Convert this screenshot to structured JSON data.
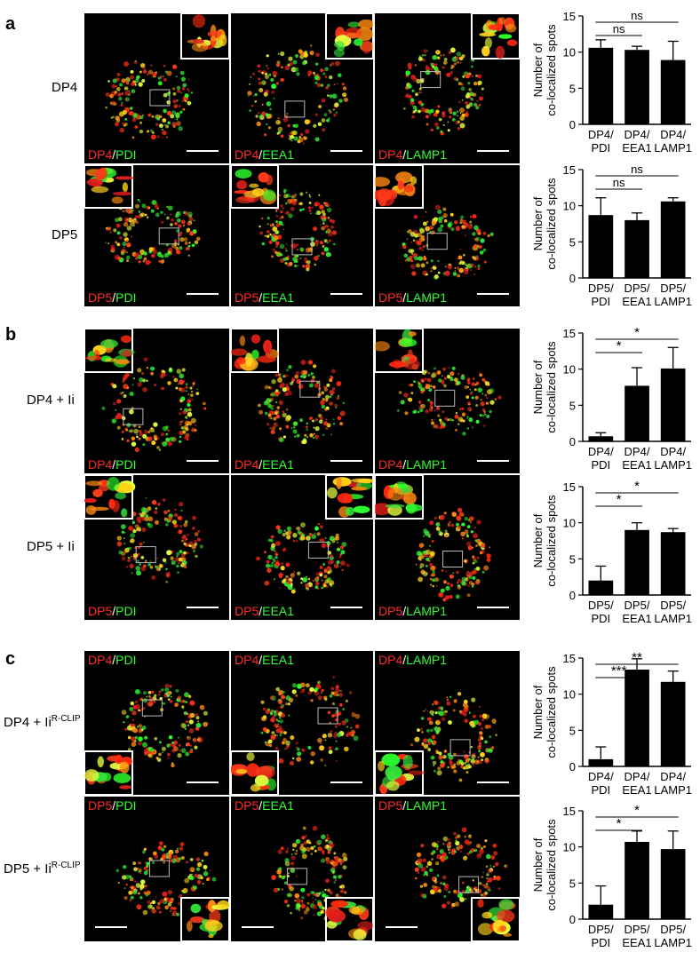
{
  "panels": [
    {
      "letter": "a",
      "rows": [
        {
          "label": "DP4",
          "sup": "",
          "pep": "DP4",
          "images": [
            {
              "marker": "PDI",
              "label_pos": "bottom",
              "inset": "top-right"
            },
            {
              "marker": "EEA1",
              "label_pos": "bottom",
              "inset": "top-right"
            },
            {
              "marker": "LAMP1",
              "label_pos": "bottom",
              "inset": "top-right"
            }
          ]
        },
        {
          "label": "DP5",
          "sup": "",
          "pep": "DP5",
          "images": [
            {
              "marker": "PDI",
              "label_pos": "bottom",
              "inset": "top-left"
            },
            {
              "marker": "EEA1",
              "label_pos": "bottom",
              "inset": "top-left"
            },
            {
              "marker": "LAMP1",
              "label_pos": "bottom",
              "inset": "top-left"
            }
          ]
        }
      ]
    },
    {
      "letter": "b",
      "rows": [
        {
          "label": "DP4 + Ii",
          "sup": "",
          "pep": "DP4",
          "images": [
            {
              "marker": "PDI",
              "label_pos": "bottom",
              "inset": "top-left"
            },
            {
              "marker": "EEA1",
              "label_pos": "bottom",
              "inset": "top-left"
            },
            {
              "marker": "LAMP1",
              "label_pos": "bottom",
              "inset": "top-left"
            }
          ]
        },
        {
          "label": "DP5 + Ii",
          "sup": "",
          "pep": "DP5",
          "images": [
            {
              "marker": "PDI",
              "label_pos": "bottom",
              "inset": "top-left"
            },
            {
              "marker": "EEA1",
              "label_pos": "bottom",
              "inset": "top-right"
            },
            {
              "marker": "LAMP1",
              "label_pos": "bottom",
              "inset": "top-left"
            }
          ]
        }
      ]
    },
    {
      "letter": "c",
      "rows": [
        {
          "label": "DP4 + Ii",
          "sup": "R-CLIP",
          "pep": "DP4",
          "images": [
            {
              "marker": "PDI",
              "label_pos": "top",
              "inset": "bottom-left"
            },
            {
              "marker": "EEA1",
              "label_pos": "top",
              "inset": "bottom-left"
            },
            {
              "marker": "LAMP1",
              "label_pos": "top",
              "inset": "bottom-left"
            }
          ]
        },
        {
          "label": "DP5 + Ii",
          "sup": "R-CLIP",
          "pep": "DP5",
          "images": [
            {
              "marker": "PDI",
              "label_pos": "top",
              "inset": "bottom-right"
            },
            {
              "marker": "EEA1",
              "label_pos": "top",
              "inset": "bottom-right"
            },
            {
              "marker": "LAMP1",
              "label_pos": "top",
              "inset": "bottom-right"
            }
          ]
        }
      ]
    }
  ],
  "chart_data": [
    {
      "type": "bar",
      "ylabel": "Number of\nco-localized spots",
      "ylim": [
        0,
        15
      ],
      "yticks": [
        0,
        5,
        10,
        15
      ],
      "categories": [
        "DP4/\nPDI",
        "DP4/\nEEA1",
        "DP4/\nLAMP1"
      ],
      "values": [
        10.6,
        10.3,
        8.9
      ],
      "errors": [
        1.1,
        0.5,
        2.6
      ],
      "significance": [
        {
          "from": 0,
          "to": 1,
          "label": "ns"
        },
        {
          "from": 0,
          "to": 2,
          "label": "ns"
        }
      ]
    },
    {
      "type": "bar",
      "ylabel": "Number of\nco-localized spots",
      "ylim": [
        0,
        15
      ],
      "yticks": [
        0,
        5,
        10,
        15
      ],
      "categories": [
        "DP5/\nPDI",
        "DP5/\nEEA1",
        "DP5/\nLAMP1"
      ],
      "values": [
        8.7,
        8.0,
        10.6
      ],
      "errors": [
        2.4,
        1.0,
        0.5
      ],
      "significance": [
        {
          "from": 0,
          "to": 1,
          "label": "ns"
        },
        {
          "from": 0,
          "to": 2,
          "label": "ns"
        }
      ]
    },
    {
      "type": "bar",
      "ylabel": "Number of\nco-localized spots",
      "ylim": [
        0,
        15
      ],
      "yticks": [
        0,
        5,
        10,
        15
      ],
      "categories": [
        "DP4/\nPDI",
        "DP4/\nEEA1",
        "DP4/\nLAMP1"
      ],
      "values": [
        0.7,
        7.7,
        10.1
      ],
      "errors": [
        0.5,
        2.5,
        2.9
      ],
      "significance": [
        {
          "from": 0,
          "to": 1,
          "label": "*"
        },
        {
          "from": 0,
          "to": 2,
          "label": "*"
        }
      ]
    },
    {
      "type": "bar",
      "ylabel": "Number of\nco-localized spots",
      "ylim": [
        0,
        15
      ],
      "yticks": [
        0,
        5,
        10,
        15
      ],
      "categories": [
        "DP5/\nPDI",
        "DP5/\nEEA1",
        "DP5/\nLAMP1"
      ],
      "values": [
        2.0,
        9.0,
        8.7
      ],
      "errors": [
        2.0,
        1.0,
        0.5
      ],
      "significance": [
        {
          "from": 0,
          "to": 1,
          "label": "*"
        },
        {
          "from": 0,
          "to": 2,
          "label": "*"
        }
      ]
    },
    {
      "type": "bar",
      "ylabel": "Number of\nco-localized spots",
      "ylim": [
        0,
        15
      ],
      "yticks": [
        0,
        5,
        10,
        15
      ],
      "categories": [
        "DP4/\nPDI",
        "DP4/\nEEA1",
        "DP4/\nLAMP1"
      ],
      "values": [
        1.0,
        13.4,
        11.7
      ],
      "errors": [
        1.7,
        1.5,
        1.5
      ],
      "significance": [
        {
          "from": 0,
          "to": 1,
          "label": "***"
        },
        {
          "from": 0,
          "to": 2,
          "label": "**"
        }
      ]
    },
    {
      "type": "bar",
      "ylabel": "Number of\nco-localized spots",
      "ylim": [
        0,
        15
      ],
      "yticks": [
        0,
        5,
        10,
        15
      ],
      "categories": [
        "DP5/\nPDI",
        "DP5/\nEEA1",
        "DP5/\nLAMP1"
      ],
      "values": [
        2.0,
        10.7,
        9.7
      ],
      "errors": [
        2.6,
        1.5,
        2.5
      ],
      "significance": [
        {
          "from": 0,
          "to": 1,
          "label": "*"
        },
        {
          "from": 0,
          "to": 2,
          "label": "*"
        }
      ]
    }
  ]
}
